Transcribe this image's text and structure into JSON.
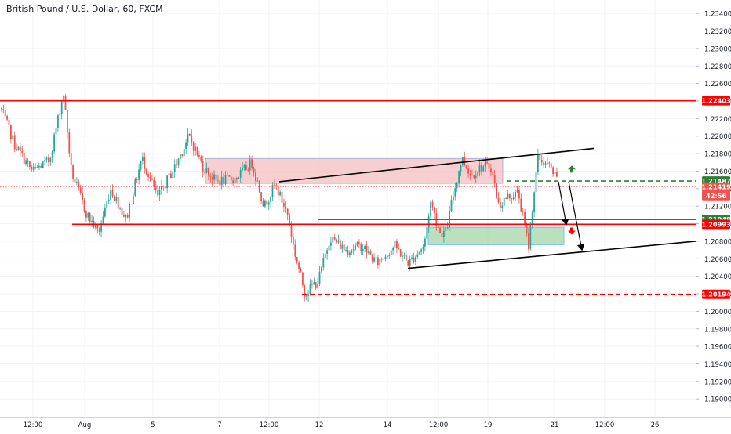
{
  "chart_title": "British Pound / U.S. Dollar, 60, FXCM",
  "colors": {
    "up": "#26a69a",
    "down": "#ef5350",
    "resistance": "#ff0000",
    "support_green": "#2e7d32",
    "trend_line": "#000000",
    "supply_zone": "#f4bfc0",
    "demand_zone": "#a5d6a7",
    "grid": "#f0f3fa",
    "axis_text": "#131722"
  },
  "chart_data": {
    "type": "candlestick",
    "symbol": "GBPUSD",
    "timeframe": "60",
    "source": "FXCM",
    "ylim": [
      1.1885,
      1.235
    ],
    "y_ticks": [
      "1.23400",
      "1.23200",
      "1.23000",
      "1.22800",
      "1.22600",
      "1.22400",
      "1.22200",
      "1.22000",
      "1.21800",
      "1.21600",
      "1.21400",
      "1.21200",
      "1.21000",
      "1.20800",
      "1.20600",
      "1.20400",
      "1.20200",
      "1.20000",
      "1.19800",
      "1.19600",
      "1.19400",
      "1.19200",
      "1.19000"
    ],
    "x_ticks": [
      "12:00",
      "Aug",
      "5",
      "7",
      "12:00",
      "12",
      "14",
      "12:00",
      "19",
      "21",
      "12:00",
      "26"
    ],
    "price_labels": [
      {
        "text": "1.22403",
        "value": 1.22403,
        "color": "#ff0000"
      },
      {
        "text": "1.21487",
        "value": 1.21487,
        "color": "#2e7d32"
      },
      {
        "text": "1.21419",
        "value": 1.21419,
        "color": "#ef5350"
      },
      {
        "text": "42:56",
        "value": 1.2132,
        "color": "#ef5350"
      },
      {
        "text": "1.21048",
        "value": 1.21048,
        "color": "#2e7d32"
      },
      {
        "text": "1.20993",
        "value": 1.20993,
        "color": "#ff0000"
      },
      {
        "text": "1.20194",
        "value": 1.20194,
        "color": "#ff0000"
      }
    ],
    "levels": [
      {
        "name": "resistance",
        "value": 1.22403,
        "style": "solid",
        "color": "#ff0000"
      },
      {
        "name": "support",
        "value": 1.20993,
        "style": "solid",
        "color": "#ff0000"
      },
      {
        "name": "green-level",
        "value": 1.21048,
        "style": "solid",
        "color": "#2e7d32"
      },
      {
        "name": "target-up",
        "value": 1.21487,
        "style": "dashed",
        "color": "#2e7d32"
      },
      {
        "name": "target-down",
        "value": 1.20194,
        "style": "dashed",
        "color": "#ff0000"
      },
      {
        "name": "current-price",
        "value": 1.21419,
        "style": "dotted",
        "color": "#ef5350"
      }
    ],
    "zones": [
      {
        "name": "supply-zone",
        "y_top": 1.21745,
        "y_bottom": 1.2146,
        "color": "#f4bfc0"
      },
      {
        "name": "demand-zone",
        "y_top": 1.2096,
        "y_bottom": 1.2076,
        "color": "#a5d6a7"
      }
    ],
    "channel": {
      "upper": [
        [
          1.2148
        ],
        [
          1.2186
        ]
      ],
      "lower": [
        [
          1.2049
        ],
        [
          1.208
        ]
      ]
    },
    "arrows": [
      {
        "name": "green-up-arrow",
        "direction": "up",
        "color": "#2e7d32"
      },
      {
        "name": "red-down-arrow",
        "direction": "down",
        "color": "#ff0000"
      }
    ],
    "anchors": [
      [
        0,
        1.2232
      ],
      [
        18,
        1.219
      ],
      [
        40,
        1.216
      ],
      [
        62,
        1.2172
      ],
      [
        80,
        1.225
      ],
      [
        90,
        1.216
      ],
      [
        110,
        1.211
      ],
      [
        125,
        1.209
      ],
      [
        140,
        1.214
      ],
      [
        160,
        1.2105
      ],
      [
        180,
        1.2175
      ],
      [
        200,
        1.213
      ],
      [
        222,
        1.2165
      ],
      [
        240,
        1.22
      ],
      [
        258,
        1.2165
      ],
      [
        275,
        1.2148
      ],
      [
        300,
        1.2152
      ],
      [
        320,
        1.217
      ],
      [
        336,
        1.212
      ],
      [
        350,
        1.2145
      ],
      [
        366,
        1.211
      ],
      [
        374,
        1.207
      ],
      [
        388,
        1.202
      ],
      [
        398,
        1.203
      ],
      [
        405,
        1.2035
      ],
      [
        420,
        1.2085
      ],
      [
        440,
        1.207
      ],
      [
        460,
        1.2075
      ],
      [
        480,
        1.2055
      ],
      [
        502,
        1.2075
      ],
      [
        520,
        1.2055
      ],
      [
        540,
        1.2075
      ],
      [
        548,
        1.2125
      ],
      [
        560,
        1.209
      ],
      [
        568,
        1.209
      ],
      [
        575,
        1.2125
      ],
      [
        588,
        1.2175
      ],
      [
        600,
        1.2155
      ],
      [
        612,
        1.2165
      ],
      [
        625,
        1.2165
      ],
      [
        635,
        1.212
      ],
      [
        645,
        1.213
      ],
      [
        660,
        1.2135
      ],
      [
        673,
        1.2075
      ],
      [
        678,
        1.212
      ],
      [
        685,
        1.2175
      ],
      [
        700,
        1.2165
      ],
      [
        710,
        1.2148
      ]
    ]
  }
}
